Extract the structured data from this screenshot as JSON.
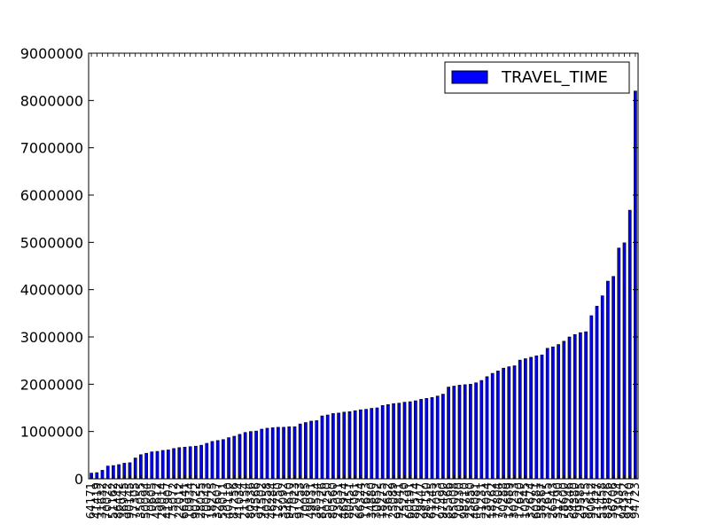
{
  "chart_data": {
    "type": "bar",
    "xlabel": "",
    "ylabel": "",
    "ylim": [
      0,
      9000000
    ],
    "yticks": [
      0,
      1000000,
      2000000,
      3000000,
      4000000,
      5000000,
      6000000,
      7000000,
      8000000,
      9000000
    ],
    "legend": {
      "placement": "top-right",
      "entries": [
        "TRAVEL_TIME"
      ]
    },
    "series": [
      {
        "name": "TRAVEL_TIME",
        "color": "#0000ff",
        "values": [
          120000,
          130000,
          180000,
          270000,
          280000,
          300000,
          330000,
          340000,
          440000,
          510000,
          540000,
          570000,
          580000,
          600000,
          610000,
          640000,
          660000,
          670000,
          680000,
          690000,
          710000,
          750000,
          790000,
          810000,
          830000,
          870000,
          900000,
          940000,
          980000,
          1000000,
          1010000,
          1050000,
          1070000,
          1080000,
          1090000,
          1090000,
          1100000,
          1100000,
          1160000,
          1190000,
          1220000,
          1230000,
          1330000,
          1350000,
          1380000,
          1390000,
          1410000,
          1420000,
          1440000,
          1460000,
          1470000,
          1490000,
          1500000,
          1550000,
          1570000,
          1590000,
          1600000,
          1620000,
          1630000,
          1650000,
          1680000,
          1700000,
          1720000,
          1750000,
          1790000,
          1940000,
          1960000,
          1980000,
          1990000,
          2000000,
          2030000,
          2080000,
          2160000,
          2230000,
          2280000,
          2340000,
          2370000,
          2390000,
          2510000,
          2540000,
          2570000,
          2600000,
          2620000,
          2760000,
          2790000,
          2840000,
          2910000,
          3000000,
          3050000,
          3090000,
          3110000,
          3450000,
          3650000,
          3870000,
          4180000,
          4280000,
          4880000,
          4990000,
          5680000,
          8200000
        ]
      }
    ],
    "categories": [
      "64171",
      "41419",
      "31632",
      "70022",
      "51162",
      "86442",
      "36945",
      "90145",
      "77305",
      "35055",
      "50094",
      "70605",
      "45612",
      "29014",
      "41907",
      "75072",
      "22012",
      "66341",
      "10934",
      "90722",
      "28055",
      "70043",
      "18225",
      "32607",
      "59011",
      "40110",
      "87256",
      "41034",
      "21154",
      "80336",
      "34566",
      "91502",
      "40258",
      "46284",
      "12750",
      "33092",
      "94610",
      "57023",
      "91253",
      "70085",
      "49031",
      "38534",
      "81726",
      "50250",
      "80560",
      "23031",
      "46974",
      "80451",
      "25061",
      "66324",
      "17673",
      "34880",
      "30652",
      "18275",
      "73652",
      "25089",
      "92841",
      "75230",
      "60191",
      "80574",
      "29447",
      "98150",
      "61245",
      "77053",
      "97490",
      "85566",
      "65008",
      "70230",
      "98710",
      "25850",
      "46081",
      "51231",
      "23054",
      "18762",
      "77804",
      "30288",
      "12689",
      "30253",
      "17620",
      "10545",
      "32674",
      "60281",
      "58367",
      "37615",
      "26543",
      "31790",
      "78600",
      "58246",
      "64380",
      "29585",
      "97315",
      "90612",
      "21427",
      "51458",
      "83826",
      "36706",
      "73034",
      "94352",
      "92410",
      "94723"
    ]
  }
}
